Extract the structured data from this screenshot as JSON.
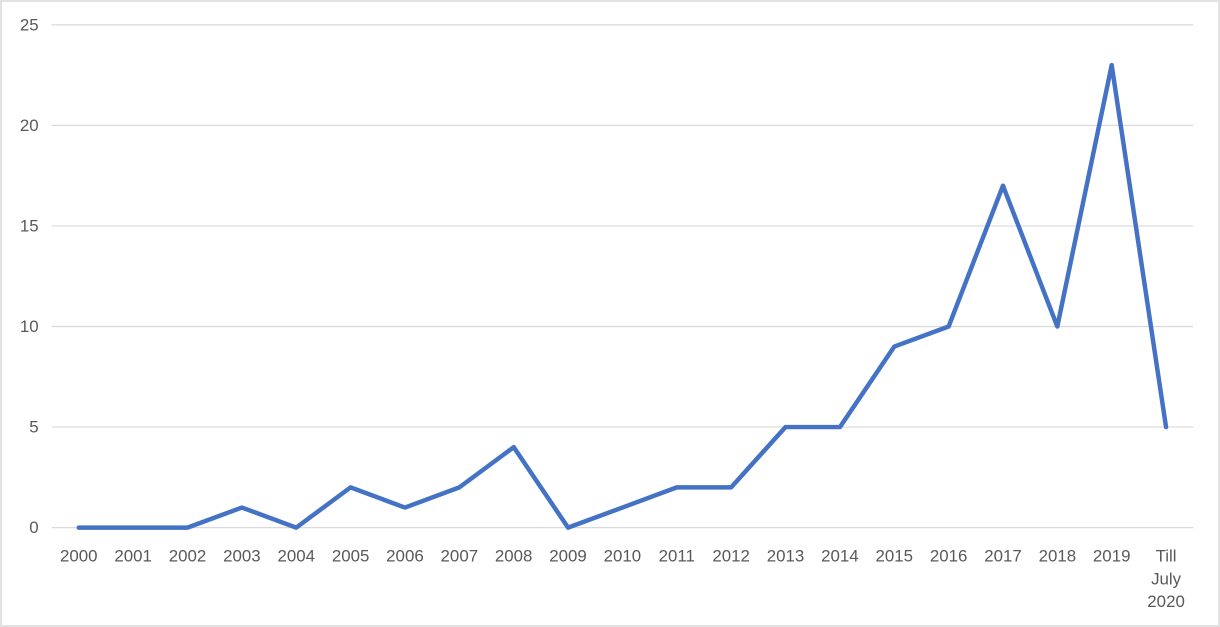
{
  "chart_data": {
    "type": "line",
    "categories": [
      "2000",
      "2001",
      "2002",
      "2003",
      "2004",
      "2005",
      "2006",
      "2007",
      "2008",
      "2009",
      "2010",
      "2011",
      "2012",
      "2013",
      "2014",
      "2015",
      "2016",
      "2017",
      "2018",
      "2019",
      "Till July 2020"
    ],
    "series": [
      {
        "name": "count",
        "values": [
          0,
          0,
          0,
          1,
          0,
          2,
          1,
          2,
          4,
          0,
          1,
          2,
          2,
          5,
          5,
          9,
          10,
          17,
          10,
          23,
          5
        ]
      }
    ],
    "title": "",
    "xlabel": "",
    "ylabel": "",
    "ylim": [
      0,
      25
    ],
    "yticks": [
      0,
      5,
      10,
      15,
      20,
      25
    ],
    "grid": true,
    "legend_position": "none",
    "colors": {
      "line": "#4472C4",
      "gridline": "#D9D9D9",
      "tick_label": "#595959",
      "background": "#FFFFFF",
      "canvas_border": "#E2E2E2"
    }
  }
}
